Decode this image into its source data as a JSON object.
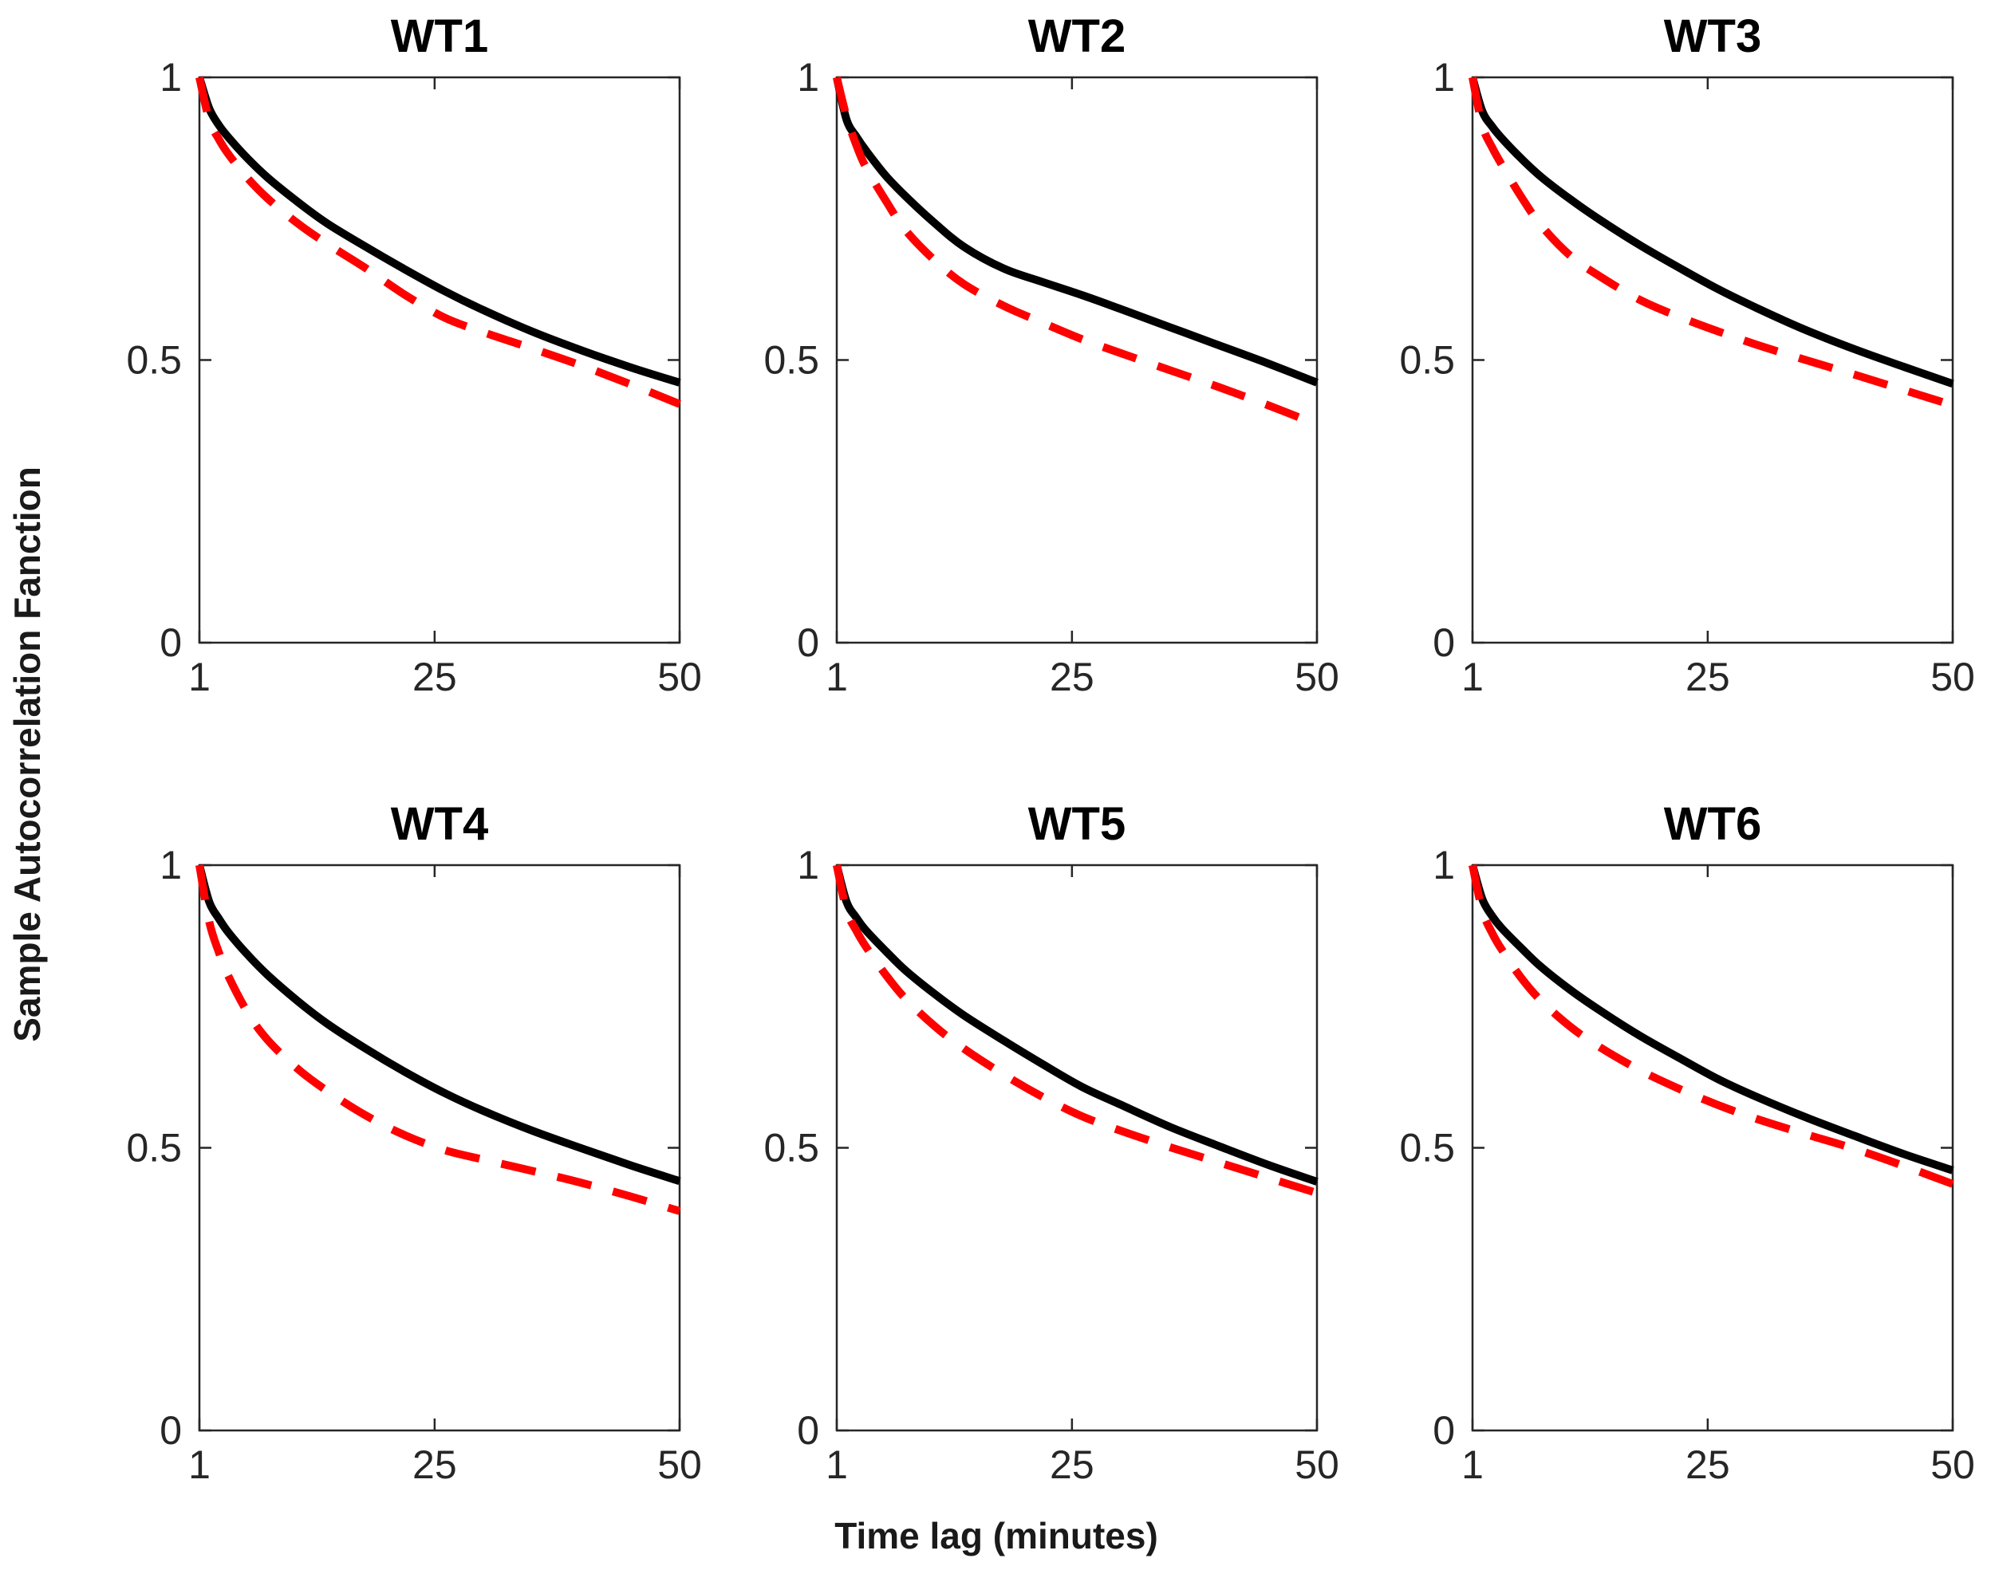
{
  "figure": {
    "ylabel": "Sample Autocorrelation Fanction",
    "xlabel": "Time lag (minutes)",
    "background": "#ffffff",
    "colors": {
      "solid_line": "#000000",
      "dashed_line": "#ff0000",
      "axis": "#262626",
      "tick_text": "#262626",
      "title_text": "#000000"
    }
  },
  "chart_data": [
    {
      "type": "line",
      "title": "WT1",
      "xlim": [
        1,
        50
      ],
      "ylim": [
        0,
        1
      ],
      "xticks": [
        1,
        25,
        50
      ],
      "xtick_labels": [
        "1",
        "25",
        "50"
      ],
      "yticks": [
        0,
        0.5,
        1
      ],
      "ytick_labels": [
        "0",
        "0.5",
        "1"
      ],
      "grid": false,
      "legend": null,
      "x": [
        1,
        2,
        3,
        4,
        6,
        8,
        11,
        14,
        18,
        22,
        26,
        30,
        35,
        40,
        45,
        50
      ],
      "series": [
        {
          "name": "solid-black",
          "style": "solid",
          "color": "#000000",
          "values": [
            1.0,
            0.945,
            0.915,
            0.893,
            0.855,
            0.822,
            0.78,
            0.742,
            0.7,
            0.66,
            0.622,
            0.588,
            0.55,
            0.517,
            0.487,
            0.46
          ]
        },
        {
          "name": "dashed-red",
          "style": "dashed",
          "color": "#ff0000",
          "values": [
            1.0,
            0.925,
            0.89,
            0.863,
            0.82,
            0.785,
            0.742,
            0.706,
            0.662,
            0.615,
            0.575,
            0.549,
            0.52,
            0.49,
            0.457,
            0.422
          ]
        }
      ]
    },
    {
      "type": "line",
      "title": "WT2",
      "xlim": [
        1,
        50
      ],
      "ylim": [
        0,
        1
      ],
      "xticks": [
        1,
        25,
        50
      ],
      "xtick_labels": [
        "1",
        "25",
        "50"
      ],
      "yticks": [
        0,
        0.5,
        1
      ],
      "ytick_labels": [
        "0",
        "0.5",
        "1"
      ],
      "grid": false,
      "legend": null,
      "x": [
        1,
        2,
        3,
        4,
        6,
        8,
        11,
        14,
        18,
        22,
        26,
        30,
        35,
        40,
        45,
        50
      ],
      "series": [
        {
          "name": "solid-black",
          "style": "solid",
          "color": "#000000",
          "values": [
            1.0,
            0.925,
            0.895,
            0.87,
            0.826,
            0.79,
            0.742,
            0.7,
            0.662,
            0.638,
            0.615,
            0.59,
            0.558,
            0.526,
            0.494,
            0.46
          ]
        },
        {
          "name": "dashed-red",
          "style": "dashed",
          "color": "#ff0000",
          "values": [
            1.0,
            0.93,
            0.88,
            0.84,
            0.782,
            0.73,
            0.676,
            0.634,
            0.596,
            0.566,
            0.537,
            0.512,
            0.482,
            0.452,
            0.42,
            0.386
          ]
        }
      ]
    },
    {
      "type": "line",
      "title": "WT3",
      "xlim": [
        1,
        50
      ],
      "ylim": [
        0,
        1
      ],
      "xticks": [
        1,
        25,
        50
      ],
      "xtick_labels": [
        "1",
        "25",
        "50"
      ],
      "yticks": [
        0,
        0.5,
        1
      ],
      "ytick_labels": [
        "0",
        "0.5",
        "1"
      ],
      "grid": false,
      "legend": null,
      "x": [
        1,
        2,
        3,
        4,
        6,
        8,
        11,
        14,
        18,
        22,
        26,
        30,
        35,
        40,
        45,
        50
      ],
      "series": [
        {
          "name": "solid-black",
          "style": "solid",
          "color": "#000000",
          "values": [
            1.0,
            0.94,
            0.913,
            0.892,
            0.856,
            0.824,
            0.784,
            0.748,
            0.704,
            0.664,
            0.626,
            0.592,
            0.553,
            0.519,
            0.488,
            0.458
          ]
        },
        {
          "name": "dashed-red",
          "style": "dashed",
          "color": "#ff0000",
          "values": [
            1.0,
            0.915,
            0.876,
            0.845,
            0.788,
            0.738,
            0.684,
            0.648,
            0.607,
            0.577,
            0.551,
            0.527,
            0.5,
            0.474,
            0.447,
            0.42
          ]
        }
      ]
    },
    {
      "type": "line",
      "title": "WT4",
      "xlim": [
        1,
        50
      ],
      "ylim": [
        0,
        1
      ],
      "xticks": [
        1,
        25,
        50
      ],
      "xtick_labels": [
        "1",
        "25",
        "50"
      ],
      "yticks": [
        0,
        0.5,
        1
      ],
      "ytick_labels": [
        "0",
        "0.5",
        "1"
      ],
      "grid": false,
      "legend": null,
      "x": [
        1,
        2,
        3,
        4,
        6,
        8,
        11,
        14,
        18,
        22,
        26,
        30,
        35,
        40,
        45,
        50
      ],
      "series": [
        {
          "name": "solid-black",
          "style": "solid",
          "color": "#000000",
          "values": [
            1.0,
            0.935,
            0.905,
            0.88,
            0.84,
            0.805,
            0.76,
            0.72,
            0.675,
            0.634,
            0.597,
            0.565,
            0.53,
            0.499,
            0.469,
            0.441
          ]
        },
        {
          "name": "dashed-red",
          "style": "dashed",
          "color": "#ff0000",
          "values": [
            1.0,
            0.9,
            0.845,
            0.802,
            0.737,
            0.69,
            0.64,
            0.601,
            0.557,
            0.522,
            0.496,
            0.479,
            0.459,
            0.438,
            0.414,
            0.388
          ]
        }
      ]
    },
    {
      "type": "line",
      "title": "WT5",
      "xlim": [
        1,
        50
      ],
      "ylim": [
        0,
        1
      ],
      "xticks": [
        1,
        25,
        50
      ],
      "xtick_labels": [
        "1",
        "25",
        "50"
      ],
      "yticks": [
        0,
        0.5,
        1
      ],
      "ytick_labels": [
        "0",
        "0.5",
        "1"
      ],
      "grid": false,
      "legend": null,
      "x": [
        1,
        2,
        3,
        4,
        6,
        8,
        11,
        14,
        18,
        22,
        26,
        30,
        35,
        40,
        45,
        50
      ],
      "series": [
        {
          "name": "solid-black",
          "style": "solid",
          "color": "#000000",
          "values": [
            1.0,
            0.935,
            0.907,
            0.884,
            0.848,
            0.814,
            0.772,
            0.734,
            0.69,
            0.648,
            0.608,
            0.576,
            0.537,
            0.503,
            0.47,
            0.44
          ]
        },
        {
          "name": "dashed-red",
          "style": "dashed",
          "color": "#ff0000",
          "values": [
            1.0,
            0.92,
            0.884,
            0.855,
            0.806,
            0.764,
            0.715,
            0.675,
            0.63,
            0.59,
            0.556,
            0.53,
            0.501,
            0.474,
            0.447,
            0.42
          ]
        }
      ]
    },
    {
      "type": "line",
      "title": "WT6",
      "xlim": [
        1,
        50
      ],
      "ylim": [
        0,
        1
      ],
      "xticks": [
        1,
        25,
        50
      ],
      "xtick_labels": [
        "1",
        "25",
        "50"
      ],
      "yticks": [
        0,
        0.5,
        1
      ],
      "ytick_labels": [
        "0",
        "0.5",
        "1"
      ],
      "grid": false,
      "legend": null,
      "x": [
        1,
        2,
        3,
        4,
        6,
        8,
        11,
        14,
        18,
        22,
        26,
        30,
        35,
        40,
        45,
        50
      ],
      "series": [
        {
          "name": "solid-black",
          "style": "solid",
          "color": "#000000",
          "values": [
            1.0,
            0.94,
            0.91,
            0.888,
            0.853,
            0.82,
            0.779,
            0.743,
            0.699,
            0.66,
            0.622,
            0.59,
            0.554,
            0.521,
            0.489,
            0.46
          ]
        },
        {
          "name": "dashed-red",
          "style": "dashed",
          "color": "#ff0000",
          "values": [
            1.0,
            0.92,
            0.88,
            0.85,
            0.8,
            0.76,
            0.714,
            0.678,
            0.638,
            0.605,
            0.576,
            0.551,
            0.524,
            0.498,
            0.468,
            0.436
          ]
        }
      ]
    }
  ]
}
